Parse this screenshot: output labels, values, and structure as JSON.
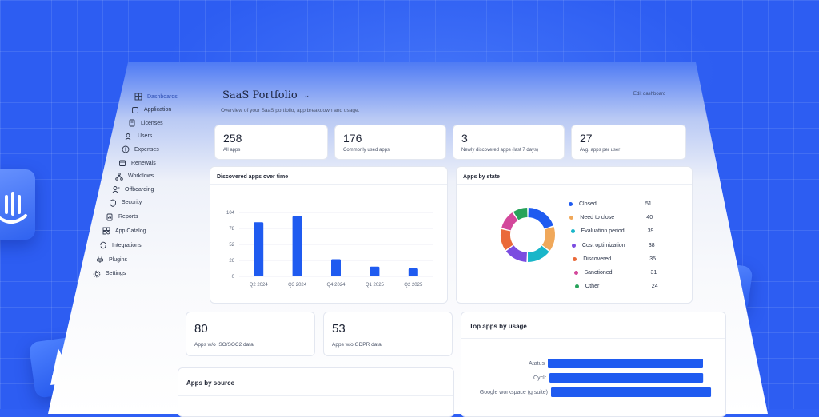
{
  "header": {
    "title": "SaaS Portfolio",
    "subtitle": "Overview of your SaaS portfolio, app breakdown and usage.",
    "edit_label": "Edit dashboard"
  },
  "sidebar": {
    "items": [
      {
        "label": "Dashboards",
        "icon": "grid-icon"
      },
      {
        "label": "Application",
        "icon": "app-icon"
      },
      {
        "label": "Licenses",
        "icon": "license-icon"
      },
      {
        "label": "Users",
        "icon": "users-icon"
      },
      {
        "label": "Expenses",
        "icon": "dollar-icon"
      },
      {
        "label": "Renewals",
        "icon": "calendar-icon"
      },
      {
        "label": "Workflows",
        "icon": "workflow-icon"
      },
      {
        "label": "Offboarding",
        "icon": "user-minus-icon"
      },
      {
        "label": "Security",
        "icon": "shield-icon"
      },
      {
        "label": "Reports",
        "icon": "report-icon"
      },
      {
        "label": "App Catalog",
        "icon": "catalog-icon"
      },
      {
        "label": "Integrations",
        "icon": "integrations-icon"
      },
      {
        "label": "Plugins",
        "icon": "plugin-icon"
      },
      {
        "label": "Settings",
        "icon": "gear-icon"
      }
    ]
  },
  "stats": [
    {
      "value": "258",
      "label": "All apps"
    },
    {
      "value": "176",
      "label": "Commonly used apps"
    },
    {
      "value": "3",
      "label": "Newly discovered apps (last 7 days)"
    },
    {
      "value": "27",
      "label": "Avg. apps per user"
    }
  ],
  "stats2": [
    {
      "value": "80",
      "label": "Apps w/o ISO/SOC2 data"
    },
    {
      "value": "53",
      "label": "Apps w/o GDPR data"
    }
  ],
  "discovered_chart": {
    "title": "Discovered apps over time"
  },
  "state_chart": {
    "title": "Apps by state"
  },
  "source_section": {
    "title": "Apps by source"
  },
  "usage_chart": {
    "title": "Top apps by usage"
  },
  "colors": {
    "accent": "#1f5bf0",
    "background": "#2d5df2"
  },
  "chart_data": [
    {
      "type": "bar",
      "title": "Discovered apps over time",
      "categories": [
        "Q2 2024",
        "Q3 2024",
        "Q4 2024",
        "Q1 2025",
        "Q2 2025"
      ],
      "values": [
        88,
        98,
        28,
        16,
        13
      ],
      "yticks": [
        0,
        26,
        52,
        78,
        104
      ],
      "ylim": [
        0,
        104
      ],
      "grid": true
    },
    {
      "type": "pie",
      "title": "Apps by state",
      "labels": [
        "Closed",
        "Need to close",
        "Evaluation period",
        "Cost optimization",
        "Discovered",
        "Sanctioned",
        "Other"
      ],
      "values": [
        51,
        40,
        39,
        38,
        35,
        31,
        24
      ],
      "colors": [
        "#1f5bf0",
        "#f0a85a",
        "#19b6c9",
        "#7b4ce0",
        "#ea6a3a",
        "#d3489b",
        "#27a35a"
      ],
      "legend": "right"
    },
    {
      "type": "bar",
      "orientation": "horizontal",
      "title": "Top apps by usage",
      "categories": [
        "Atatus",
        "Cyclr",
        "Google workspace (g suite)"
      ],
      "values": [
        100,
        97,
        99
      ]
    }
  ]
}
